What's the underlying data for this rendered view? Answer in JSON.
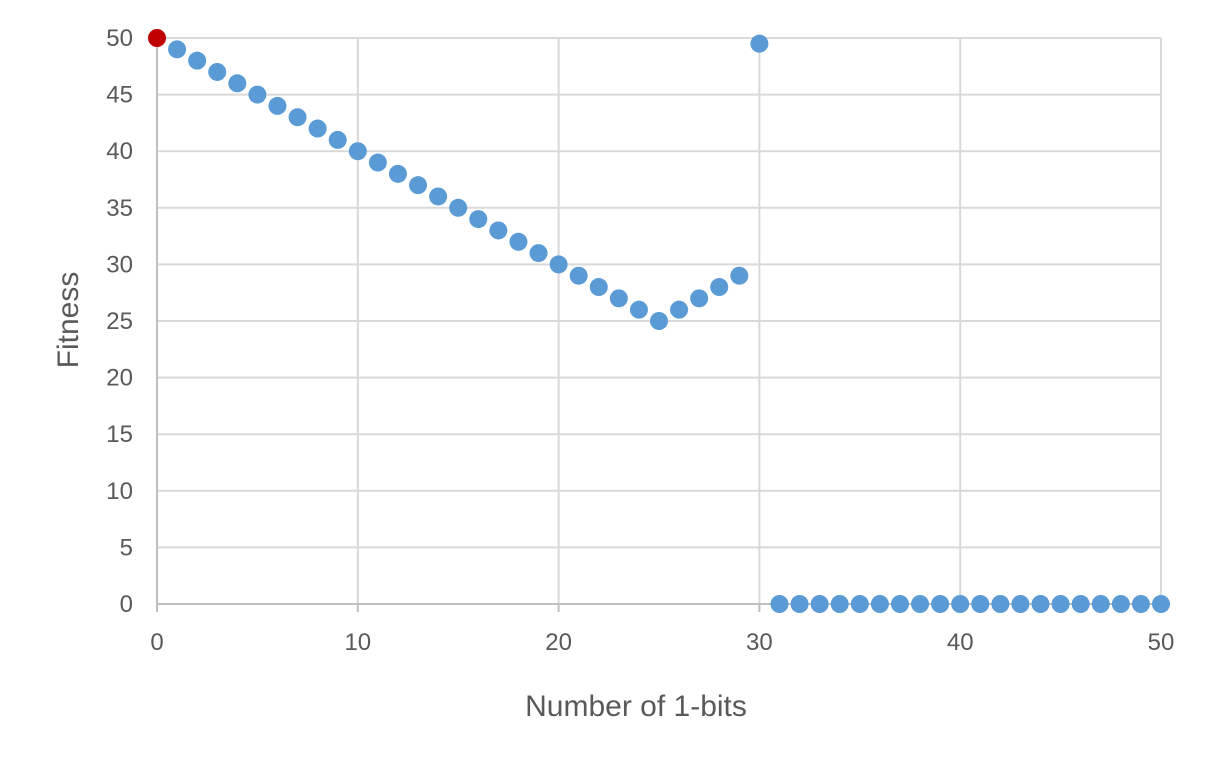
{
  "chart_data": {
    "type": "scatter",
    "title": "",
    "xlabel": "Number of 1-bits",
    "ylabel": "Fitness",
    "xlim": [
      0,
      50
    ],
    "ylim": [
      0,
      50
    ],
    "x_ticks": [
      "0",
      "10",
      "20",
      "30",
      "40",
      "50"
    ],
    "y_ticks": [
      "0",
      "5",
      "10",
      "15",
      "20",
      "25",
      "30",
      "35",
      "40",
      "45",
      "50"
    ],
    "grid": true,
    "legend": "none",
    "series": [
      {
        "color": "#5b9bd5",
        "points": [
          [
            1,
            49
          ],
          [
            2,
            48
          ],
          [
            3,
            47
          ],
          [
            4,
            46
          ],
          [
            5,
            45
          ],
          [
            6,
            44
          ],
          [
            7,
            43
          ],
          [
            8,
            42
          ],
          [
            9,
            41
          ],
          [
            10,
            40
          ],
          [
            11,
            39
          ],
          [
            12,
            38
          ],
          [
            13,
            37
          ],
          [
            14,
            36
          ],
          [
            15,
            35
          ],
          [
            16,
            34
          ],
          [
            17,
            33
          ],
          [
            18,
            32
          ],
          [
            19,
            31
          ],
          [
            20,
            30
          ],
          [
            21,
            29
          ],
          [
            22,
            28
          ],
          [
            23,
            27
          ],
          [
            24,
            26
          ],
          [
            25,
            25
          ],
          [
            26,
            26
          ],
          [
            27,
            27
          ],
          [
            28,
            28
          ],
          [
            29,
            29
          ],
          [
            30,
            49.5
          ],
          [
            31,
            0
          ],
          [
            32,
            0
          ],
          [
            33,
            0
          ],
          [
            34,
            0
          ],
          [
            35,
            0
          ],
          [
            36,
            0
          ],
          [
            37,
            0
          ],
          [
            38,
            0
          ],
          [
            39,
            0
          ],
          [
            40,
            0
          ],
          [
            41,
            0
          ],
          [
            42,
            0
          ],
          [
            43,
            0
          ],
          [
            44,
            0
          ],
          [
            45,
            0
          ],
          [
            46,
            0
          ],
          [
            47,
            0
          ],
          [
            48,
            0
          ],
          [
            49,
            0
          ],
          [
            50,
            0
          ]
        ]
      },
      {
        "color": "#c00000",
        "points": [
          [
            0,
            50
          ]
        ]
      }
    ]
  }
}
